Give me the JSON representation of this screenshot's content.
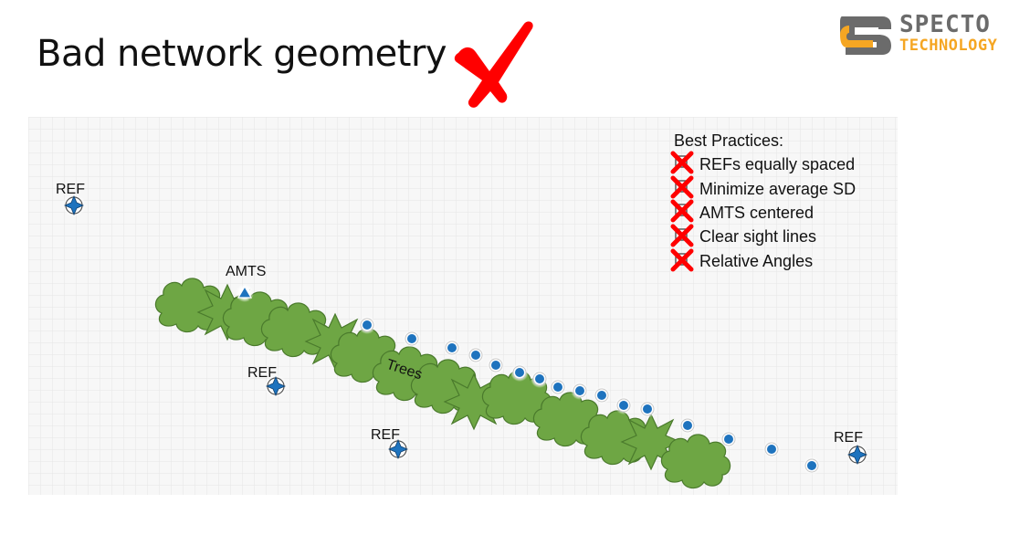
{
  "slide": {
    "title": "Bad network geometry"
  },
  "logo": {
    "word1": "SPECTO",
    "word2": "TECHNOLOGY",
    "colors": {
      "grey": "#6b6b6b",
      "orange": "#f5a623"
    }
  },
  "cross_color": "#ff0000",
  "diagram": {
    "ref_label": "REF",
    "amts_label": "AMTS",
    "trees_label": "Trees",
    "best_practices": {
      "heading": "Best Practices:",
      "items": [
        "REFs equally spaced",
        "Minimize average SD",
        "AMTS centered",
        "Clear sight lines",
        "Relative Angles"
      ]
    },
    "colors": {
      "tree_fill": "#6ea644",
      "tree_stroke": "#4a7a2c",
      "point_blue": "#1e73be",
      "grid": "#e6e6e6",
      "panel_bg": "#f7f7f7"
    }
  }
}
